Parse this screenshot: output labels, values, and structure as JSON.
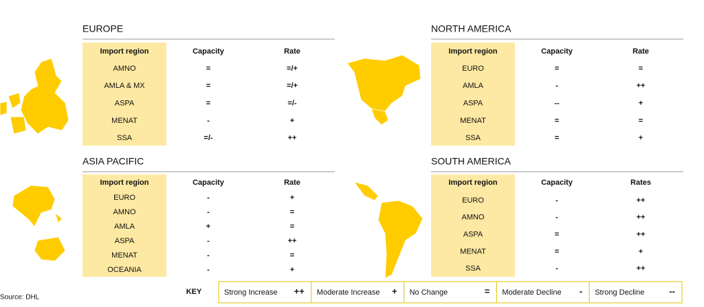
{
  "source": "Source: DHL",
  "regions": [
    {
      "title": "EUROPE",
      "headers": [
        "Import region",
        "Capacity",
        "Rate"
      ],
      "rows": [
        [
          "AMNO",
          "=",
          "=/+"
        ],
        [
          "AMLA & MX",
          "=",
          "=/+"
        ],
        [
          "ASPA",
          "=",
          "=/-"
        ],
        [
          "MENAT",
          "-",
          "+"
        ],
        [
          "SSA",
          "=/-",
          "++"
        ]
      ]
    },
    {
      "title": "NORTH AMERICA",
      "headers": [
        "Import region",
        "Capacity",
        "Rate"
      ],
      "rows": [
        [
          "EURO",
          "=",
          "="
        ],
        [
          "AMLA",
          "-",
          "++"
        ],
        [
          "ASPA",
          "--",
          "+"
        ],
        [
          "MENAT",
          "=",
          "="
        ],
        [
          "SSA",
          "=",
          "+"
        ]
      ]
    },
    {
      "title": "ASIA PACIFIC",
      "headers": [
        "Import region",
        "Capacity",
        "Rate"
      ],
      "rows": [
        [
          "EURO",
          "-",
          "+"
        ],
        [
          "AMNO",
          "-",
          "="
        ],
        [
          "AMLA",
          "+",
          "="
        ],
        [
          "ASPA",
          "-",
          "++"
        ],
        [
          "MENAT",
          "-",
          "="
        ],
        [
          "OCEANIA",
          "-",
          "+"
        ]
      ]
    },
    {
      "title": "SOUTH AMERICA",
      "headers": [
        "Import region",
        "Capacity",
        "Rates"
      ],
      "rows": [
        [
          "EURO",
          "-",
          "++"
        ],
        [
          "AMNO",
          "-",
          "++"
        ],
        [
          "ASPA",
          "=",
          "++"
        ],
        [
          "MENAT",
          "=",
          "+"
        ],
        [
          "SSA",
          "-",
          "++"
        ]
      ]
    }
  ],
  "key": {
    "title": "KEY",
    "items": [
      {
        "label": "Strong Increase",
        "symbol": "++"
      },
      {
        "label": "Moderate Increase",
        "symbol": "+"
      },
      {
        "label": "No Change",
        "symbol": "="
      },
      {
        "label": "Moderate Decline",
        "symbol": "-"
      },
      {
        "label": "Strong Decline",
        "symbol": "--"
      }
    ]
  }
}
